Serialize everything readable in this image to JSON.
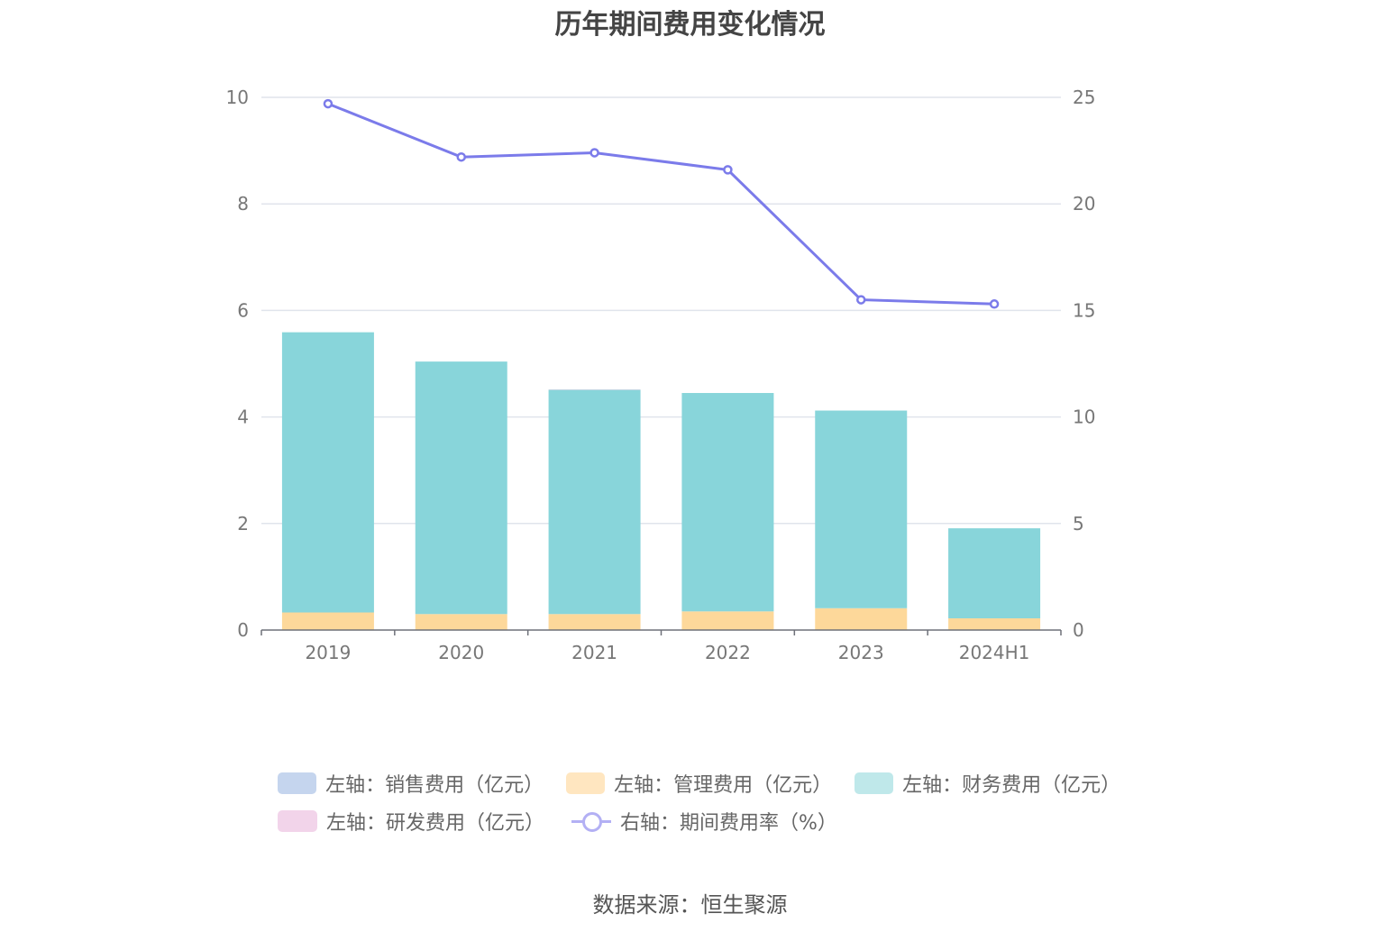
{
  "title": "历年期间费用变化情况",
  "source": "数据来源：恒生聚源",
  "colors": {
    "sales": "#c5d5ee",
    "management": "#fdd89a",
    "finance": "#88d5da",
    "rd": "#f2d4ea",
    "rate_line": "#7b7bea"
  },
  "legend": {
    "sales": "左轴：销售费用（亿元）",
    "management": "左轴：管理费用（亿元）",
    "finance": "左轴：财务费用（亿元）",
    "rd": "左轴：研发费用（亿元）",
    "rate": "右轴：期间费用率（%）"
  },
  "chart_data": {
    "type": "bar",
    "stacked": true,
    "categories": [
      "2019",
      "2020",
      "2021",
      "2022",
      "2023",
      "2024H1"
    ],
    "series": [
      {
        "name": "左轴：销售费用（亿元）",
        "axis": "left",
        "values": [
          0,
          0,
          0,
          0,
          0,
          0
        ]
      },
      {
        "name": "左轴：管理费用（亿元）",
        "axis": "left",
        "values": [
          0.33,
          0.3,
          0.3,
          0.35,
          0.41,
          0.22
        ]
      },
      {
        "name": "左轴：财务费用（亿元）",
        "axis": "left",
        "values": [
          5.26,
          4.74,
          4.21,
          4.1,
          3.71,
          1.69
        ]
      },
      {
        "name": "左轴：研发费用（亿元）",
        "axis": "left",
        "values": [
          0,
          0,
          0.01,
          0,
          0,
          0
        ]
      },
      {
        "name": "右轴：期间费用率（%）",
        "axis": "right",
        "type": "line",
        "values": [
          24.7,
          22.2,
          22.4,
          21.6,
          15.5,
          15.3
        ]
      }
    ],
    "y_left": {
      "min": 0,
      "max": 10,
      "ticks": [
        0,
        2,
        4,
        6,
        8,
        10
      ]
    },
    "y_right": {
      "min": 0,
      "max": 25,
      "ticks": [
        0,
        5,
        10,
        15,
        20,
        25
      ]
    },
    "grid": true,
    "legend_position": "bottom"
  }
}
